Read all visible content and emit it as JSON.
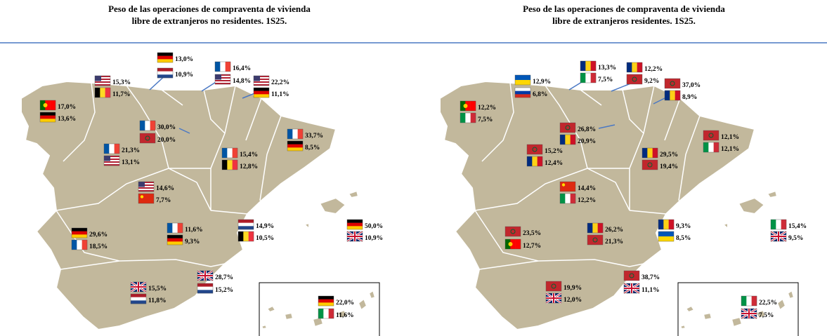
{
  "maps": [
    {
      "title": [
        "Peso de las operaciones de compraventa de vivienda",
        "libre de extranjeros no residentes. 1S25."
      ],
      "labels": [
        "15,3%",
        "11,7%",
        "13,0%",
        "10,9%",
        "16,4%",
        "14,8%",
        "22,2%",
        "11,1%",
        "17,0%",
        "13,6%",
        "30,0%",
        "20,0%",
        "33,7%",
        "8,5%",
        "21,3%",
        "13,1%",
        "15,4%",
        "12,8%",
        "14,6%",
        "7,7%",
        "11,6%",
        "9,3%",
        "14,9%",
        "10,5%",
        "50,0%",
        "10,9%",
        "29,6%",
        "18,5%",
        "15,5%",
        "11,8%",
        "28,7%",
        "15,2%",
        "22,0%",
        "11,6%"
      ]
    },
    {
      "title": [
        "Peso de las operaciones de compraventa de vivienda",
        "libre de extranjeros residentes. 1S25."
      ],
      "labels": [
        "12,9%",
        "6,8%",
        "13,3%",
        "7,5%",
        "12,2%",
        "9,2%",
        "37,0%",
        "8,9%",
        "12,2%",
        "7,5%",
        "26,8%",
        "20,9%",
        "12,1%",
        "12,1%",
        "15,2%",
        "12,4%",
        "29,5%",
        "19,4%",
        "14,4%",
        "12,2%",
        "26,2%",
        "21,3%",
        "9,3%",
        "8,5%",
        "15,4%",
        "9,5%",
        "23,5%",
        "12,7%",
        "19,9%",
        "12,0%",
        "38,7%",
        "11,1%",
        "22,5%",
        "7,5%"
      ]
    }
  ]
}
